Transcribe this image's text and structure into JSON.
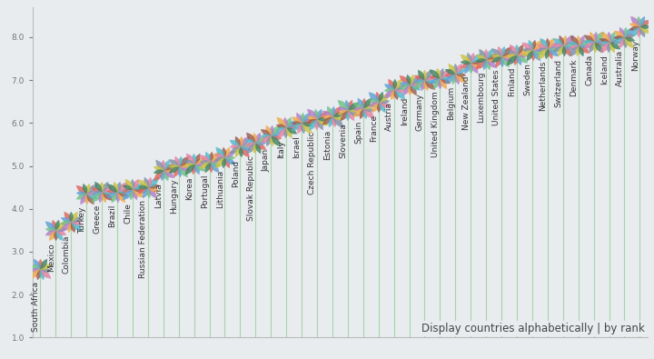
{
  "chart_data": {
    "type": "lollipop",
    "categories": [
      "South Africa",
      "Mexico",
      "Colombia",
      "Turkey",
      "Greece",
      "Brazil",
      "Chile",
      "Russian Federation",
      "Latvia",
      "Hungary",
      "Korea",
      "Portugal",
      "Lithuania",
      "Poland",
      "Slovak Republic",
      "Japan",
      "Italy",
      "Israel",
      "Czech Republic",
      "Estonia",
      "Slovenia",
      "Spain",
      "France",
      "Austria",
      "Ireland",
      "Germany",
      "United Kingdom",
      "Belgium",
      "New Zealand",
      "Luxembourg",
      "United States",
      "Finland",
      "Sweden",
      "Netherlands",
      "Switzerland",
      "Denmark",
      "Canada",
      "Iceland",
      "Australia",
      "Norway"
    ],
    "values": [
      2.6,
      3.5,
      3.7,
      4.35,
      4.4,
      4.4,
      4.45,
      4.5,
      4.9,
      5.0,
      5.05,
      5.1,
      5.2,
      5.45,
      5.55,
      5.7,
      5.9,
      6.0,
      6.1,
      6.15,
      6.3,
      6.35,
      6.5,
      6.8,
      6.9,
      7.0,
      7.05,
      7.15,
      7.4,
      7.5,
      7.55,
      7.6,
      7.7,
      7.75,
      7.8,
      7.8,
      7.9,
      7.9,
      8.0,
      8.25
    ],
    "color": "#a8d5a8",
    "ylim": [
      1,
      8.7
    ],
    "yticks": [
      {
        "value": 1,
        "label": "1.0"
      },
      {
        "value": 2,
        "label": "2.0"
      },
      {
        "value": 3,
        "label": "3.0"
      },
      {
        "value": 4,
        "label": "4.0"
      },
      {
        "value": 5,
        "label": "5.0"
      },
      {
        "value": 6,
        "label": "6.0"
      },
      {
        "value": 7,
        "label": "7.0"
      },
      {
        "value": 8,
        "label": "8.0"
      }
    ],
    "tick_labels": "y",
    "grid": false,
    "annotation": "Display countries alphabetically | by rank"
  }
}
